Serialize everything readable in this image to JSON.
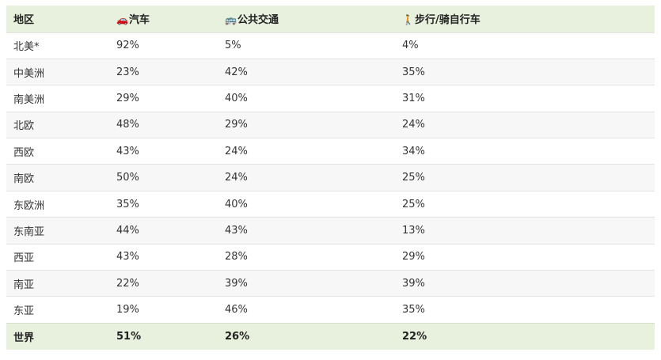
{
  "header": {
    "region": "地区",
    "car": {
      "icon": "🚗",
      "label": "汽车"
    },
    "transit": {
      "icon": "🚌",
      "label": "公共交通"
    },
    "walk": {
      "icon": "🚶",
      "label": "步行/骑自行车"
    }
  },
  "rows": [
    {
      "region": "北美*",
      "car": "92%",
      "transit": "5%",
      "walk": "4%"
    },
    {
      "region": "中美洲",
      "car": "23%",
      "transit": "42%",
      "walk": "35%"
    },
    {
      "region": "南美洲",
      "car": "29%",
      "transit": "40%",
      "walk": "31%"
    },
    {
      "region": "北欧",
      "car": "48%",
      "transit": "29%",
      "walk": "24%"
    },
    {
      "region": "西欧",
      "car": "43%",
      "transit": "24%",
      "walk": "34%"
    },
    {
      "region": "南欧",
      "car": "50%",
      "transit": "24%",
      "walk": "25%"
    },
    {
      "region": "东欧洲",
      "car": "35%",
      "transit": "40%",
      "walk": "25%"
    },
    {
      "region": "东南亚",
      "car": "44%",
      "transit": "43%",
      "walk": "13%"
    },
    {
      "region": "西亚",
      "car": "43%",
      "transit": "28%",
      "walk": "29%"
    },
    {
      "region": "南亚",
      "car": "22%",
      "transit": "39%",
      "walk": "39%"
    },
    {
      "region": "东亚",
      "car": "19%",
      "transit": "46%",
      "walk": "35%"
    }
  ],
  "footer": {
    "region": "世界",
    "car": "51%",
    "transit": "26%",
    "walk": "22%"
  },
  "colors": {
    "header_bg": "#e8f0de",
    "alt_row_bg": "#f7f7f7",
    "border": "#e3e3e3"
  }
}
